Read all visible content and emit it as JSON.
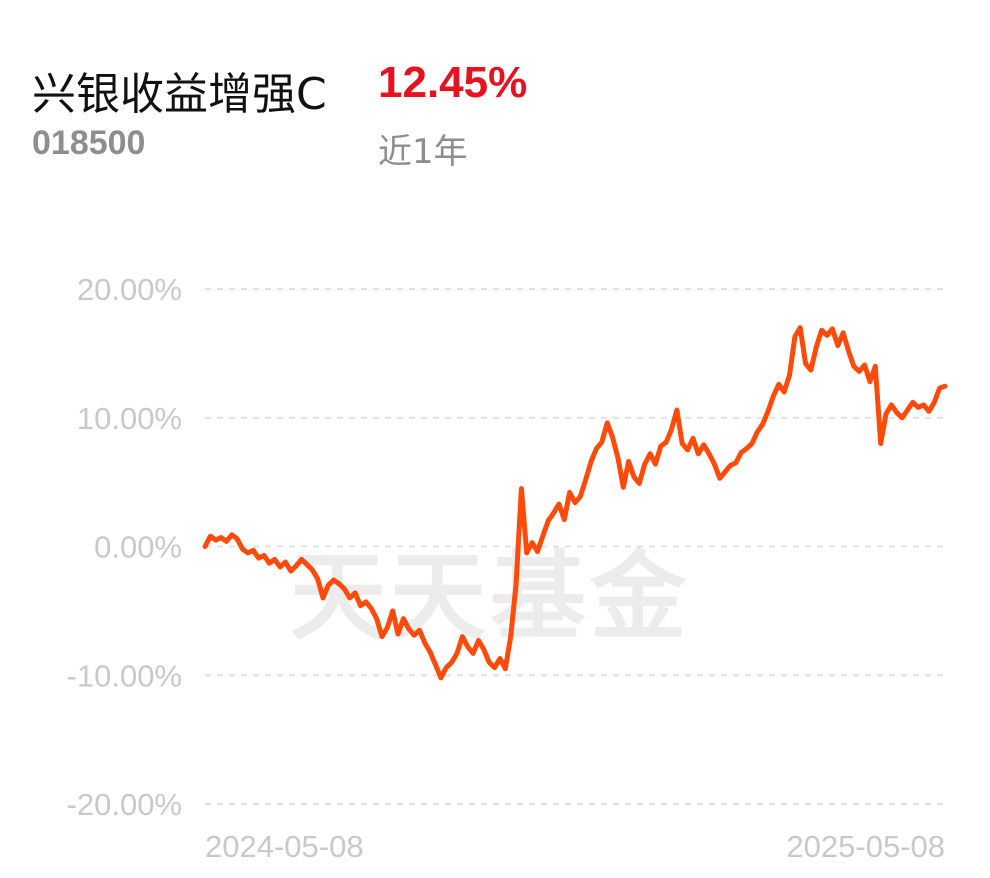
{
  "header": {
    "fund_name": "兴银收益增强C",
    "return_value": "12.45%",
    "fund_code": "018500",
    "period": "近1年"
  },
  "watermark": "天天基金",
  "colors": {
    "line": "#ff4a0a",
    "return_text": "#e8121f",
    "grid": "#e1e1e1",
    "tick": "#c9c9c9"
  },
  "chart_data": {
    "type": "line",
    "x_start": "2024-05-08",
    "x_end": "2025-05-08",
    "xtick_labels": [
      "2024-05-08",
      "2025-05-08"
    ],
    "ylim": [
      -20,
      20
    ],
    "yticks": [
      20,
      10,
      0,
      -10,
      -20
    ],
    "ytick_labels": [
      "20.00%",
      "10.00%",
      "0.00%",
      "-10.00%",
      "-20.00%"
    ],
    "grid": true,
    "series": [
      {
        "values": [
          0.0,
          0.8,
          0.5,
          0.7,
          0.4,
          0.9,
          0.6,
          -0.2,
          -0.5,
          -0.3,
          -0.9,
          -0.7,
          -1.3,
          -1.0,
          -1.6,
          -1.2,
          -1.9,
          -1.5,
          -1.0,
          -1.4,
          -1.8,
          -2.5,
          -4.0,
          -3.0,
          -2.6,
          -2.9,
          -3.3,
          -4.0,
          -3.6,
          -4.6,
          -4.3,
          -4.8,
          -5.6,
          -7.0,
          -6.3,
          -5.0,
          -6.8,
          -5.6,
          -6.4,
          -6.9,
          -6.5,
          -7.5,
          -8.2,
          -9.2,
          -10.2,
          -9.4,
          -9.0,
          -8.3,
          -7.0,
          -7.8,
          -8.3,
          -7.3,
          -8.0,
          -9.0,
          -9.4,
          -8.7,
          -9.5,
          -7.0,
          -3.0,
          4.5,
          -0.5,
          0.3,
          -0.4,
          0.8,
          2.0,
          2.6,
          3.3,
          2.1,
          4.2,
          3.4,
          3.9,
          5.2,
          6.6,
          7.6,
          8.1,
          9.6,
          8.5,
          6.9,
          4.6,
          6.6,
          5.4,
          4.9,
          6.4,
          7.2,
          6.4,
          7.8,
          8.1,
          9.1,
          10.6,
          8.0,
          7.5,
          8.4,
          7.2,
          7.9,
          7.2,
          6.4,
          5.3,
          5.8,
          6.3,
          6.5,
          7.3,
          7.6,
          8.0,
          8.9,
          9.5,
          10.5,
          11.7,
          12.6,
          12.0,
          13.3,
          16.3,
          17.0,
          14.2,
          13.7,
          15.5,
          16.8,
          16.4,
          16.9,
          15.6,
          16.6,
          15.2,
          14.0,
          13.6,
          14.1,
          12.8,
          14.0,
          8.0,
          10.3,
          11.0,
          10.4,
          10.0,
          10.6,
          11.2,
          10.8,
          11.0,
          10.5,
          11.2,
          12.3,
          12.45
        ]
      }
    ]
  }
}
